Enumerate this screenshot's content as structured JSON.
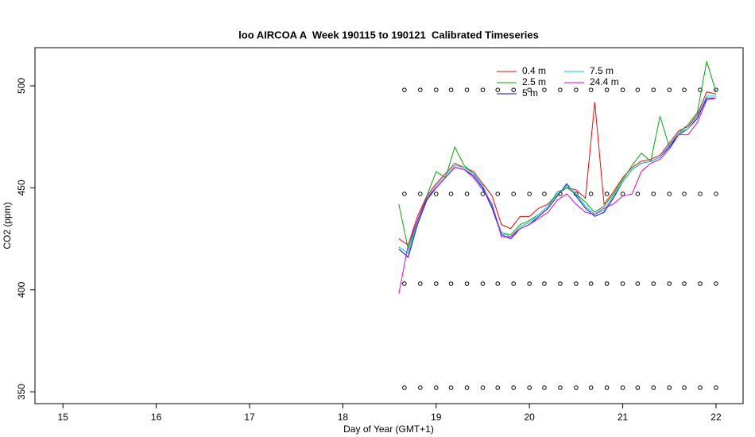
{
  "chart_data": {
    "type": "line",
    "title": "loo AIRCOA A  Week 190115 to 190121  Calibrated Timeseries",
    "x_label": "Day of Year (GMT+1)",
    "y_label": "CO2 (ppm)",
    "xlim": [
      14.7,
      22.29
    ],
    "xticks": [
      15,
      16,
      17,
      18,
      19,
      20,
      21,
      22
    ],
    "ylim": [
      344.2,
      518.7
    ],
    "yticks": [
      350,
      400,
      450,
      500
    ],
    "grid": false,
    "legend": "top-right",
    "x": [
      18.6,
      18.7,
      18.8,
      18.9,
      19.0,
      19.1,
      19.2,
      19.3,
      19.4,
      19.5,
      19.6,
      19.7,
      19.8,
      19.9,
      20.0,
      20.1,
      20.2,
      20.3,
      20.4,
      20.5,
      20.6,
      20.7,
      20.8,
      20.9,
      21.0,
      21.1,
      21.2,
      21.3,
      21.4,
      21.5,
      21.6,
      21.7,
      21.8,
      21.9,
      22.0
    ],
    "series": [
      {
        "name": "0.4 m",
        "color": "#ff0000",
        "values": [
          425,
          422,
          436,
          446,
          452,
          457,
          462,
          460,
          458,
          452,
          446,
          432,
          430,
          436,
          436,
          440,
          442,
          447,
          450,
          449,
          445,
          492,
          442,
          448,
          455,
          460,
          463,
          464,
          466,
          472,
          478,
          480,
          486,
          497,
          496
        ]
      },
      {
        "name": "2.5 m",
        "color": "#00aa00",
        "values": [
          442,
          420,
          434,
          446,
          458,
          455,
          470,
          461,
          457,
          451,
          441,
          428,
          427,
          432,
          434,
          437,
          441,
          448,
          450,
          447,
          443,
          438,
          441,
          447,
          454,
          461,
          467,
          463,
          485,
          470,
          477,
          481,
          487,
          512,
          497
        ]
      },
      {
        "name": "5 m",
        "color": "#0000ff",
        "values": [
          420,
          416,
          432,
          444,
          450,
          455,
          460,
          459,
          456,
          450,
          440,
          427,
          425,
          430,
          432,
          436,
          440,
          446,
          452,
          446,
          440,
          436,
          438,
          445,
          453,
          459,
          462,
          463,
          465,
          470,
          476,
          479,
          484,
          494,
          494
        ]
      },
      {
        "name": "7.5 m",
        "color": "#00cccc",
        "values": [
          421,
          418,
          433,
          445,
          451,
          456,
          461,
          460,
          457,
          451,
          441,
          428,
          426,
          431,
          433,
          437,
          441,
          447,
          451,
          447,
          441,
          437,
          439,
          446,
          453,
          459,
          462,
          463,
          465,
          471,
          477,
          479,
          485,
          495,
          495
        ]
      },
      {
        "name": "24.4 m",
        "color": "#dd00dd",
        "values": [
          398,
          422,
          434,
          445,
          450,
          455,
          460,
          459,
          455,
          449,
          442,
          426,
          426,
          430,
          432,
          435,
          438,
          444,
          447,
          442,
          438,
          437,
          440,
          442,
          446,
          447,
          458,
          462,
          464,
          469,
          476,
          476,
          482,
          493,
          494
        ]
      }
    ],
    "markers": {
      "x": [
        18.66,
        18.83,
        19.0,
        19.16,
        19.33,
        19.5,
        19.66,
        19.83,
        20.0,
        20.16,
        20.33,
        20.5,
        20.66,
        20.83,
        21.0,
        21.16,
        21.33,
        21.5,
        21.66,
        21.83,
        22.0
      ],
      "levels": [
        498,
        447,
        403,
        352
      ]
    }
  }
}
